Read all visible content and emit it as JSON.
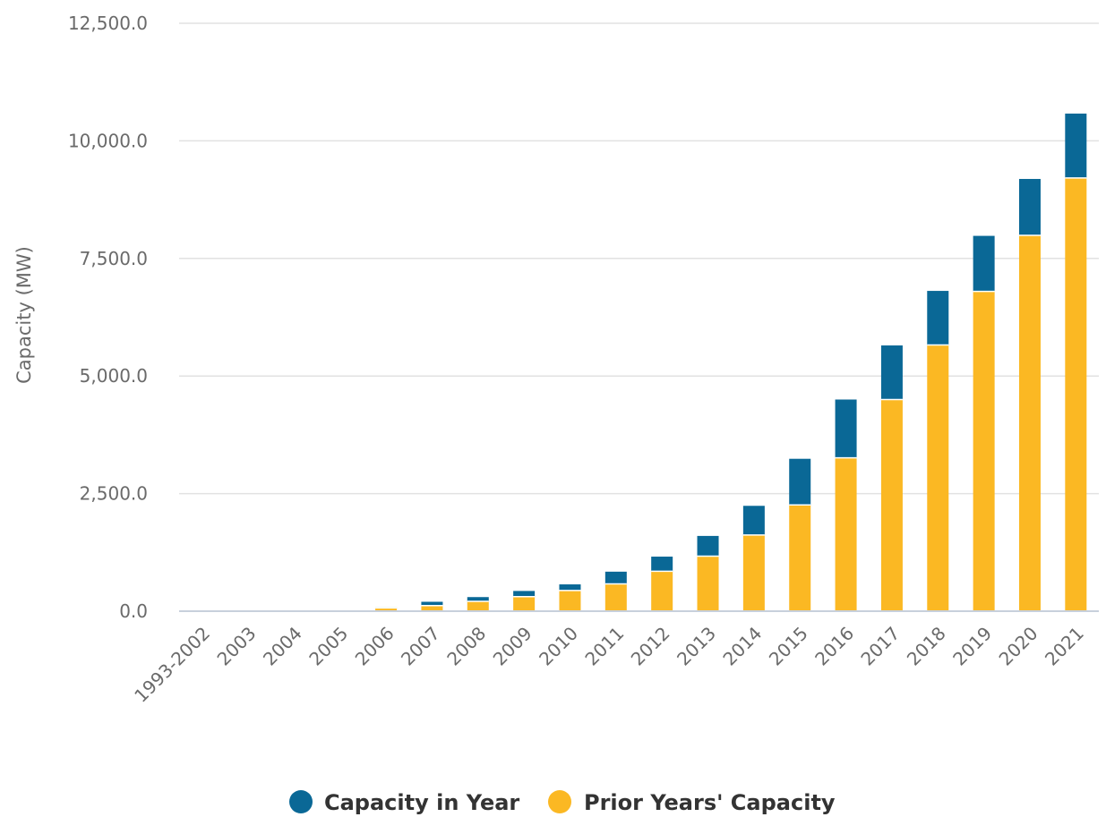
{
  "chart_data": {
    "type": "bar",
    "stacked": true,
    "ylabel": "Capacity (MW)",
    "ylim": [
      0,
      12500
    ],
    "yticks": [
      0,
      2500,
      5000,
      7500,
      10000,
      12500
    ],
    "ytick_labels": [
      "0.0",
      "2,500.0",
      "5,000.0",
      "7,500.0",
      "10,000.0",
      "12,500.0"
    ],
    "grid": true,
    "legend_position": "bottom-center",
    "categories": [
      "1993-2002",
      "2003",
      "2004",
      "2005",
      "2006",
      "2007",
      "2008",
      "2009",
      "2010",
      "2011",
      "2012",
      "2013",
      "2014",
      "2015",
      "2016",
      "2017",
      "2018",
      "2019",
      "2020",
      "2021"
    ],
    "series": [
      {
        "name": "Prior Years' Capacity",
        "color": "#FBB823",
        "values": [
          0,
          0,
          0,
          0,
          70,
          120,
          210,
          310,
          440,
          580,
          850,
          1170,
          1620,
          2260,
          3260,
          4500,
          5660,
          6800,
          7990,
          9210
        ]
      },
      {
        "name": "Capacity in Year",
        "color": "#0A6896",
        "values": [
          0,
          0,
          0,
          0,
          10,
          80,
          90,
          120,
          130,
          260,
          310,
          430,
          620,
          980,
          1240,
          1150,
          1150,
          1180,
          1200,
          1370
        ]
      }
    ]
  },
  "legend": {
    "items": [
      {
        "label": "Capacity in Year",
        "color": "#0A6896"
      },
      {
        "label": "Prior Years' Capacity",
        "color": "#FBB823"
      }
    ]
  }
}
